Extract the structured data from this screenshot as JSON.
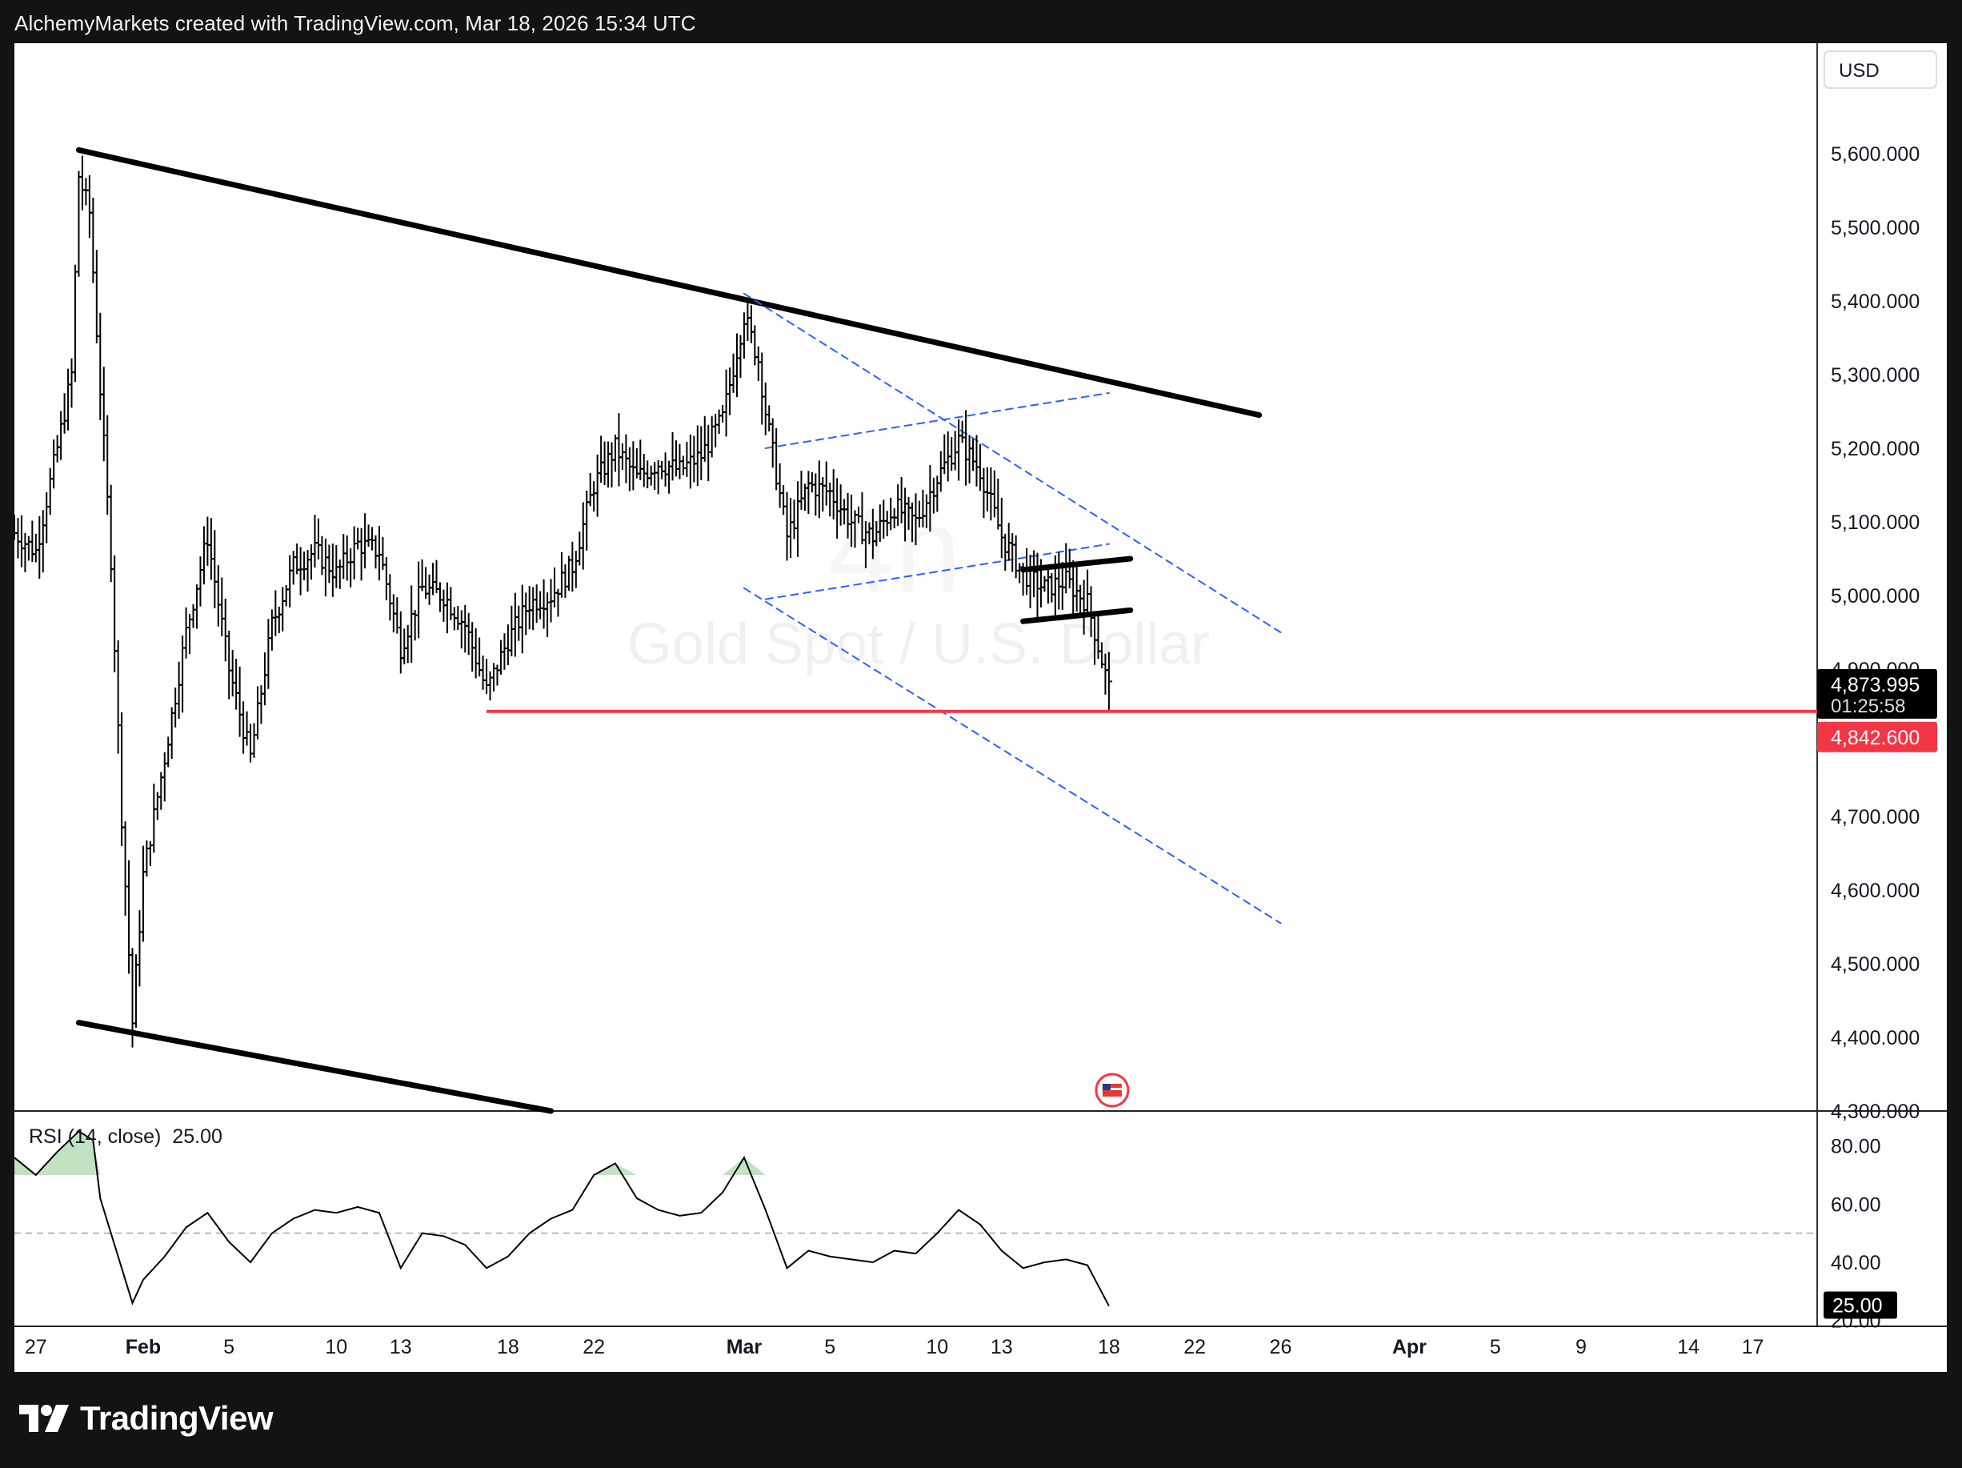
{
  "header": {
    "attribution": "AlchemyMarkets created with TradingView.com, Mar 18, 2026 15:34 UTC"
  },
  "footer": {
    "brand": "TradingView"
  },
  "colors": {
    "candle": "#000000",
    "trendline": "#000000",
    "channel": "#2962ff",
    "support": "#f23645",
    "rsi_line": "#000000",
    "rsi_fill": "#4caf50",
    "price_tag": "#000000"
  },
  "chart_data": [
    {
      "type": "ohlc",
      "title": "Gold Spot / U.S. Dollar",
      "interval": "4h",
      "currency": "USD",
      "x_range": [
        "2026-01-26",
        "2026-04-20"
      ],
      "x_ticks": [
        {
          "date": "2026-01-27",
          "label": "27"
        },
        {
          "date": "2026-02-01",
          "label": "Feb"
        },
        {
          "date": "2026-02-05",
          "label": "5"
        },
        {
          "date": "2026-02-10",
          "label": "10"
        },
        {
          "date": "2026-02-13",
          "label": "13"
        },
        {
          "date": "2026-02-18",
          "label": "18"
        },
        {
          "date": "2026-02-22",
          "label": "22"
        },
        {
          "date": "2026-03-01",
          "label": "Mar"
        },
        {
          "date": "2026-03-05",
          "label": "5"
        },
        {
          "date": "2026-03-10",
          "label": "10"
        },
        {
          "date": "2026-03-13",
          "label": "13"
        },
        {
          "date": "2026-03-18",
          "label": "18"
        },
        {
          "date": "2026-03-22",
          "label": "22"
        },
        {
          "date": "2026-03-26",
          "label": "26"
        },
        {
          "date": "2026-04-01",
          "label": "Apr"
        },
        {
          "date": "2026-04-05",
          "label": "5"
        },
        {
          "date": "2026-04-09",
          "label": "9"
        },
        {
          "date": "2026-04-14",
          "label": "14"
        },
        {
          "date": "2026-04-17",
          "label": "17"
        }
      ],
      "y_range": [
        4300,
        5750
      ],
      "y_ticks": [
        {
          "value": 5600,
          "label": "5,600.000"
        },
        {
          "value": 5500,
          "label": "5,500.000"
        },
        {
          "value": 5400,
          "label": "5,400.000"
        },
        {
          "value": 5300,
          "label": "5,300.000"
        },
        {
          "value": 5200,
          "label": "5,200.000"
        },
        {
          "value": 5100,
          "label": "5,100.000"
        },
        {
          "value": 5000,
          "label": "5,000.000"
        },
        {
          "value": 4900,
          "label": "4,900.000"
        },
        {
          "value": 4700,
          "label": "4,700.000"
        },
        {
          "value": 4600,
          "label": "4,600.000"
        },
        {
          "value": 4500,
          "label": "4,500.000"
        },
        {
          "value": 4400,
          "label": "4,400.000"
        },
        {
          "value": 4300,
          "label": "4,300.000"
        }
      ],
      "close_series": [
        {
          "x": "2026-01-26",
          "y": 5085
        },
        {
          "x": "2026-01-27",
          "y": 5060
        },
        {
          "x": "2026-01-28",
          "y": 5200
        },
        {
          "x": "2026-01-28T16:00",
          "y": 5300
        },
        {
          "x": "2026-01-29",
          "y": 5570
        },
        {
          "x": "2026-01-29T12:00",
          "y": 5520
        },
        {
          "x": "2026-01-30",
          "y": 5280
        },
        {
          "x": "2026-01-30T12:00",
          "y": 5050
        },
        {
          "x": "2026-01-31",
          "y": 4700
        },
        {
          "x": "2026-01-31T12:00",
          "y": 4420
        },
        {
          "x": "2026-02-01",
          "y": 4620
        },
        {
          "x": "2026-02-02",
          "y": 4780
        },
        {
          "x": "2026-02-03",
          "y": 4950
        },
        {
          "x": "2026-02-04",
          "y": 5080
        },
        {
          "x": "2026-02-05",
          "y": 4900
        },
        {
          "x": "2026-02-06",
          "y": 4780
        },
        {
          "x": "2026-02-07",
          "y": 4960
        },
        {
          "x": "2026-02-08",
          "y": 5040
        },
        {
          "x": "2026-02-09",
          "y": 5060
        },
        {
          "x": "2026-02-10",
          "y": 5030
        },
        {
          "x": "2026-02-11",
          "y": 5070
        },
        {
          "x": "2026-02-12",
          "y": 5060
        },
        {
          "x": "2026-02-13",
          "y": 4930
        },
        {
          "x": "2026-02-14",
          "y": 5010
        },
        {
          "x": "2026-02-15",
          "y": 5000
        },
        {
          "x": "2026-02-16",
          "y": 4960
        },
        {
          "x": "2026-02-17",
          "y": 4870
        },
        {
          "x": "2026-02-18",
          "y": 4940
        },
        {
          "x": "2026-02-19",
          "y": 4990
        },
        {
          "x": "2026-02-20",
          "y": 5000
        },
        {
          "x": "2026-02-21",
          "y": 5040
        },
        {
          "x": "2026-02-22",
          "y": 5150
        },
        {
          "x": "2026-02-23",
          "y": 5200
        },
        {
          "x": "2026-02-24",
          "y": 5160
        },
        {
          "x": "2026-02-25",
          "y": 5180
        },
        {
          "x": "2026-02-26",
          "y": 5170
        },
        {
          "x": "2026-02-27",
          "y": 5190
        },
        {
          "x": "2026-02-28",
          "y": 5240
        },
        {
          "x": "2026-03-01",
          "y": 5380
        },
        {
          "x": "2026-03-01T16:00",
          "y": 5320
        },
        {
          "x": "2026-03-02",
          "y": 5250
        },
        {
          "x": "2026-03-03",
          "y": 5080
        },
        {
          "x": "2026-03-04",
          "y": 5150
        },
        {
          "x": "2026-03-05",
          "y": 5140
        },
        {
          "x": "2026-03-06",
          "y": 5100
        },
        {
          "x": "2026-03-07",
          "y": 5080
        },
        {
          "x": "2026-03-08",
          "y": 5120
        },
        {
          "x": "2026-03-09",
          "y": 5100
        },
        {
          "x": "2026-03-10",
          "y": 5160
        },
        {
          "x": "2026-03-11",
          "y": 5210
        },
        {
          "x": "2026-03-12",
          "y": 5170
        },
        {
          "x": "2026-03-13",
          "y": 5080
        },
        {
          "x": "2026-03-14",
          "y": 5030
        },
        {
          "x": "2026-03-15",
          "y": 5010
        },
        {
          "x": "2026-03-16",
          "y": 5020
        },
        {
          "x": "2026-03-17",
          "y": 4990
        },
        {
          "x": "2026-03-18",
          "y": 4874
        }
      ],
      "last_price": {
        "label": "4,873.995",
        "value": 4873.995,
        "countdown": "01:25:58"
      },
      "support_level": {
        "label": "4,842.600",
        "value": 4842.6,
        "from": "2026-02-17"
      },
      "drawings": [
        {
          "name": "upper-trendline",
          "style": "solid",
          "points": [
            {
              "x": "2026-01-29",
              "y": 5605
            },
            {
              "x": "2026-03-25",
              "y": 5245
            }
          ]
        },
        {
          "name": "lower-trendline",
          "style": "solid",
          "points": [
            {
              "x": "2026-01-29",
              "y": 4420
            },
            {
              "x": "2026-02-20",
              "y": 4300
            }
          ]
        },
        {
          "name": "channel-upper",
          "style": "dashed",
          "points": [
            {
              "x": "2026-03-01",
              "y": 5410
            },
            {
              "x": "2026-03-26",
              "y": 4950
            }
          ]
        },
        {
          "name": "channel-lower",
          "style": "dashed",
          "points": [
            {
              "x": "2026-03-01",
              "y": 5010
            },
            {
              "x": "2026-03-26",
              "y": 4555
            }
          ]
        },
        {
          "name": "flag-upper",
          "style": "dashed",
          "points": [
            {
              "x": "2026-03-02",
              "y": 5200
            },
            {
              "x": "2026-03-18",
              "y": 5275
            }
          ]
        },
        {
          "name": "flag-lower",
          "style": "dashed",
          "points": [
            {
              "x": "2026-03-02",
              "y": 4995
            },
            {
              "x": "2026-03-18",
              "y": 5070
            }
          ]
        },
        {
          "name": "box-top",
          "style": "solid",
          "points": [
            {
              "x": "2026-03-14",
              "y": 5035
            },
            {
              "x": "2026-03-19",
              "y": 5050
            }
          ]
        },
        {
          "name": "box-bottom",
          "style": "solid",
          "points": [
            {
              "x": "2026-03-14",
              "y": 4965
            },
            {
              "x": "2026-03-19",
              "y": 4980
            }
          ]
        }
      ],
      "event_marker": {
        "date": "2026-03-18",
        "icon": "us-flag-icon"
      }
    },
    {
      "type": "line",
      "title": "RSI (14, close)",
      "value_label": "25.00",
      "value": 25.0,
      "y_range": [
        18,
        92
      ],
      "y_ticks": [
        {
          "value": 80,
          "label": "80.00"
        },
        {
          "value": 60,
          "label": "60.00"
        },
        {
          "value": 40,
          "label": "40.00"
        },
        {
          "value": 20,
          "label": "20.00"
        }
      ],
      "midline": 50,
      "series": [
        {
          "x": "2026-01-26",
          "y": 76
        },
        {
          "x": "2026-01-27",
          "y": 70
        },
        {
          "x": "2026-01-28",
          "y": 78
        },
        {
          "x": "2026-01-29",
          "y": 85
        },
        {
          "x": "2026-01-29T16:00",
          "y": 82
        },
        {
          "x": "2026-01-30",
          "y": 62
        },
        {
          "x": "2026-01-31",
          "y": 38
        },
        {
          "x": "2026-01-31T12:00",
          "y": 26
        },
        {
          "x": "2026-02-01",
          "y": 34
        },
        {
          "x": "2026-02-02",
          "y": 42
        },
        {
          "x": "2026-02-03",
          "y": 52
        },
        {
          "x": "2026-02-04",
          "y": 57
        },
        {
          "x": "2026-02-05",
          "y": 47
        },
        {
          "x": "2026-02-06",
          "y": 40
        },
        {
          "x": "2026-02-07",
          "y": 50
        },
        {
          "x": "2026-02-08",
          "y": 55
        },
        {
          "x": "2026-02-09",
          "y": 58
        },
        {
          "x": "2026-02-10",
          "y": 57
        },
        {
          "x": "2026-02-11",
          "y": 59
        },
        {
          "x": "2026-02-12",
          "y": 57
        },
        {
          "x": "2026-02-13",
          "y": 38
        },
        {
          "x": "2026-02-14",
          "y": 50
        },
        {
          "x": "2026-02-15",
          "y": 49
        },
        {
          "x": "2026-02-16",
          "y": 46
        },
        {
          "x": "2026-02-17",
          "y": 38
        },
        {
          "x": "2026-02-18",
          "y": 42
        },
        {
          "x": "2026-02-19",
          "y": 50
        },
        {
          "x": "2026-02-20",
          "y": 55
        },
        {
          "x": "2026-02-21",
          "y": 58
        },
        {
          "x": "2026-02-22",
          "y": 70
        },
        {
          "x": "2026-02-23",
          "y": 74
        },
        {
          "x": "2026-02-24",
          "y": 62
        },
        {
          "x": "2026-02-25",
          "y": 58
        },
        {
          "x": "2026-02-26",
          "y": 56
        },
        {
          "x": "2026-02-27",
          "y": 57
        },
        {
          "x": "2026-02-28",
          "y": 64
        },
        {
          "x": "2026-03-01",
          "y": 76
        },
        {
          "x": "2026-03-02",
          "y": 58
        },
        {
          "x": "2026-03-03",
          "y": 38
        },
        {
          "x": "2026-03-04",
          "y": 44
        },
        {
          "x": "2026-03-05",
          "y": 42
        },
        {
          "x": "2026-03-06",
          "y": 41
        },
        {
          "x": "2026-03-07",
          "y": 40
        },
        {
          "x": "2026-03-08",
          "y": 44
        },
        {
          "x": "2026-03-09",
          "y": 43
        },
        {
          "x": "2026-03-10",
          "y": 50
        },
        {
          "x": "2026-03-11",
          "y": 58
        },
        {
          "x": "2026-03-12",
          "y": 53
        },
        {
          "x": "2026-03-13",
          "y": 44
        },
        {
          "x": "2026-03-14",
          "y": 38
        },
        {
          "x": "2026-03-15",
          "y": 40
        },
        {
          "x": "2026-03-16",
          "y": 41
        },
        {
          "x": "2026-03-17",
          "y": 39
        },
        {
          "x": "2026-03-18",
          "y": 25
        }
      ]
    }
  ]
}
